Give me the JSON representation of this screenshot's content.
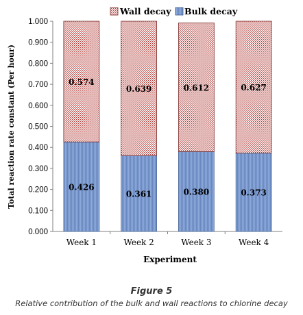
{
  "chart_data": {
    "type": "bar",
    "stacked": true,
    "categories": [
      "Week 1",
      "Week 2",
      "Week 3",
      "Week 4"
    ],
    "series": [
      {
        "name": "Bulk decay",
        "values": [
          0.426,
          0.361,
          0.38,
          0.373
        ],
        "labels": [
          "0.426",
          "0.361",
          "0.380",
          "0.373"
        ],
        "color": "#7b9fd3"
      },
      {
        "name": "Wall decay",
        "values": [
          0.574,
          0.639,
          0.612,
          0.627
        ],
        "labels": [
          "0.574",
          "0.639",
          "0.612",
          "0.627"
        ],
        "color": "#c0504d"
      }
    ],
    "xlabel": "Experiment",
    "ylabel": "Total reaction rate constant (Per hour)",
    "ylim": [
      0,
      1.0
    ],
    "yticks": [
      "0.000",
      "0.100",
      "0.200",
      "0.300",
      "0.400",
      "0.500",
      "0.600",
      "0.700",
      "0.800",
      "0.900",
      "1.000"
    ],
    "legend_position": "top",
    "grid": false
  },
  "figure": {
    "title": "Figure 5",
    "caption": "Relative contribution of the bulk and wall reactions to chlorine decay"
  }
}
